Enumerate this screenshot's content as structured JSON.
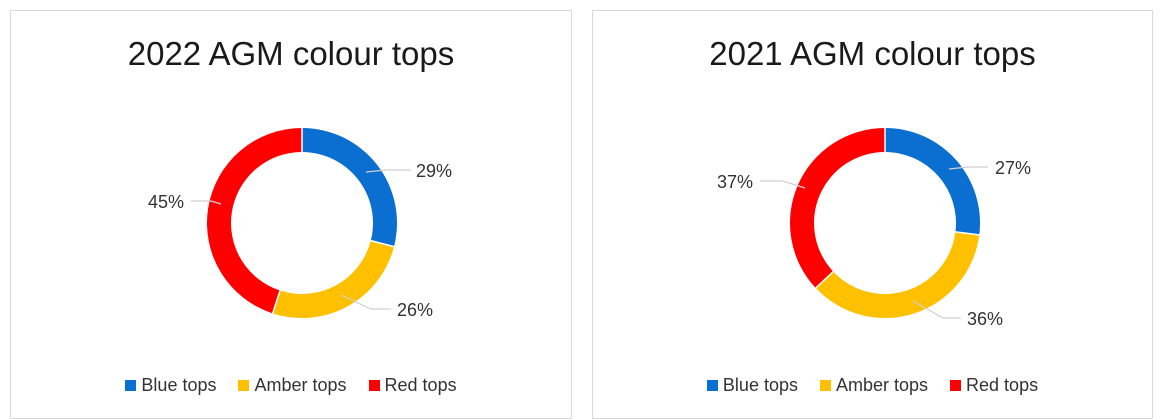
{
  "chart_data": [
    {
      "type": "pie",
      "title": "2022 AGM colour tops",
      "categories": [
        "Blue tops",
        "Amber tops",
        "Red tops"
      ],
      "values": [
        29,
        26,
        45
      ],
      "labels": [
        "29%",
        "26%",
        "45%"
      ],
      "colors": [
        "#0a6fd1",
        "#ffc000",
        "#ff0000"
      ],
      "legend_position": "bottom"
    },
    {
      "type": "pie",
      "title": "2021 AGM colour tops",
      "categories": [
        "Blue tops",
        "Amber tops",
        "Red tops"
      ],
      "values": [
        27,
        36,
        37
      ],
      "labels": [
        "27%",
        "36%",
        "37%"
      ],
      "colors": [
        "#0a6fd1",
        "#ffc000",
        "#ff0000"
      ],
      "legend_position": "bottom"
    }
  ]
}
